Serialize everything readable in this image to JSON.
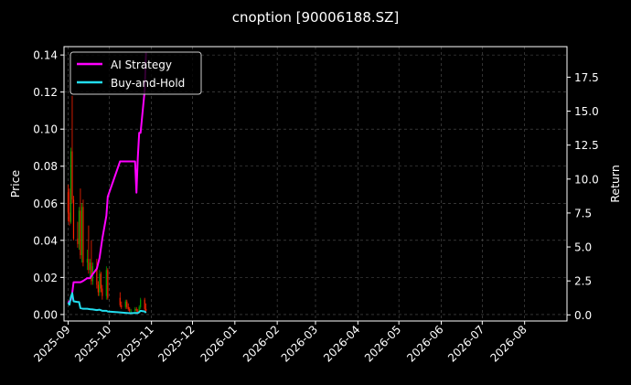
{
  "chart_data": {
    "type": "line",
    "title": "cnoption [90006188.SZ]",
    "ylabel_left": "Price",
    "ylabel_right": "Return",
    "ylim_left": [
      -0.0035,
      0.1445
    ],
    "ylim_right": [
      -0.45,
      19.75
    ],
    "yticks_left": [
      "0.00",
      "0.02",
      "0.04",
      "0.06",
      "0.08",
      "0.10",
      "0.12",
      "0.14"
    ],
    "yticks_right": [
      "0.0",
      "2.5",
      "5.0",
      "7.5",
      "10.0",
      "12.5",
      "15.0",
      "17.5"
    ],
    "xlim": [
      "2025-08-29",
      "2026-09-01"
    ],
    "xticks": [
      "2025-09",
      "2025-10",
      "2025-11",
      "2025-12",
      "2026-01",
      "2026-02",
      "2026-03",
      "2026-04",
      "2026-05",
      "2026-06",
      "2026-07",
      "2026-08"
    ],
    "grid": true,
    "legend_placement": "top-left",
    "colors": {
      "background": "#000000",
      "up": "#00a000",
      "down": "#ff2200",
      "ai": "#ff00ff",
      "bh": "#22ddee",
      "grid": "#555555"
    },
    "candles": [
      {
        "date": "2025-09-01",
        "open": 0.066,
        "high": 0.07,
        "low": 0.05,
        "close": 0.055
      },
      {
        "date": "2025-09-02",
        "open": 0.055,
        "high": 0.068,
        "low": 0.048,
        "close": 0.05
      },
      {
        "date": "2025-09-03",
        "open": 0.05,
        "high": 0.09,
        "low": 0.049,
        "close": 0.088
      },
      {
        "date": "2025-09-04",
        "open": 0.088,
        "high": 0.118,
        "low": 0.06,
        "close": 0.062
      },
      {
        "date": "2025-09-05",
        "open": 0.062,
        "high": 0.064,
        "low": 0.04,
        "close": 0.041
      },
      {
        "date": "2025-09-08",
        "open": 0.041,
        "high": 0.05,
        "low": 0.036,
        "close": 0.038
      },
      {
        "date": "2025-09-09",
        "open": 0.038,
        "high": 0.058,
        "low": 0.035,
        "close": 0.056
      },
      {
        "date": "2025-09-10",
        "open": 0.056,
        "high": 0.068,
        "low": 0.03,
        "close": 0.032
      },
      {
        "date": "2025-09-11",
        "open": 0.032,
        "high": 0.06,
        "low": 0.028,
        "close": 0.058
      },
      {
        "date": "2025-09-12",
        "open": 0.058,
        "high": 0.062,
        "low": 0.026,
        "close": 0.028
      },
      {
        "date": "2025-09-15",
        "open": 0.028,
        "high": 0.035,
        "low": 0.024,
        "close": 0.03
      },
      {
        "date": "2025-09-16",
        "open": 0.03,
        "high": 0.048,
        "low": 0.022,
        "close": 0.024
      },
      {
        "date": "2025-09-17",
        "open": 0.024,
        "high": 0.03,
        "low": 0.02,
        "close": 0.028
      },
      {
        "date": "2025-09-18",
        "open": 0.028,
        "high": 0.04,
        "low": 0.016,
        "close": 0.018
      },
      {
        "date": "2025-09-19",
        "open": 0.018,
        "high": 0.028,
        "low": 0.016,
        "close": 0.026
      },
      {
        "date": "2025-09-22",
        "open": 0.026,
        "high": 0.03,
        "low": 0.014,
        "close": 0.016
      },
      {
        "date": "2025-09-23",
        "open": 0.016,
        "high": 0.018,
        "low": 0.01,
        "close": 0.012
      },
      {
        "date": "2025-09-24",
        "open": 0.012,
        "high": 0.024,
        "low": 0.01,
        "close": 0.022
      },
      {
        "date": "2025-09-25",
        "open": 0.022,
        "high": 0.023,
        "low": 0.012,
        "close": 0.014
      },
      {
        "date": "2025-09-26",
        "open": 0.014,
        "high": 0.016,
        "low": 0.008,
        "close": 0.01
      },
      {
        "date": "2025-09-29",
        "open": 0.01,
        "high": 0.026,
        "low": 0.008,
        "close": 0.024
      },
      {
        "date": "2025-09-30",
        "open": 0.024,
        "high": 0.025,
        "low": 0.008,
        "close": 0.009
      },
      {
        "date": "2025-10-09",
        "open": 0.009,
        "high": 0.012,
        "low": 0.004,
        "close": 0.005
      },
      {
        "date": "2025-10-10",
        "open": 0.005,
        "high": 0.007,
        "low": 0.003,
        "close": 0.004
      },
      {
        "date": "2025-10-13",
        "open": 0.004,
        "high": 0.008,
        "low": 0.003,
        "close": 0.007
      },
      {
        "date": "2025-10-14",
        "open": 0.007,
        "high": 0.008,
        "low": 0.003,
        "close": 0.004
      },
      {
        "date": "2025-10-15",
        "open": 0.004,
        "high": 0.006,
        "low": 0.002,
        "close": 0.003
      },
      {
        "date": "2025-10-16",
        "open": 0.003,
        "high": 0.004,
        "low": 0.001,
        "close": 0.002
      },
      {
        "date": "2025-10-17",
        "open": 0.002,
        "high": 0.003,
        "low": 0.001,
        "close": 0.002
      },
      {
        "date": "2025-10-20",
        "open": 0.002,
        "high": 0.004,
        "low": 0.001,
        "close": 0.003
      },
      {
        "date": "2025-10-21",
        "open": 0.003,
        "high": 0.004,
        "low": 0.001,
        "close": 0.002
      },
      {
        "date": "2025-10-22",
        "open": 0.002,
        "high": 0.003,
        "low": 0.001,
        "close": 0.0015
      },
      {
        "date": "2025-10-23",
        "open": 0.0015,
        "high": 0.005,
        "low": 0.001,
        "close": 0.004
      },
      {
        "date": "2025-10-24",
        "open": 0.004,
        "high": 0.009,
        "low": 0.003,
        "close": 0.008
      },
      {
        "date": "2025-10-27",
        "open": 0.008,
        "high": 0.009,
        "low": 0.002,
        "close": 0.003
      },
      {
        "date": "2025-10-28",
        "open": 0.003,
        "high": 0.006,
        "low": 0.001,
        "close": 0.002
      }
    ],
    "series": [
      {
        "name": "AI Strategy",
        "dates": [
          "2025-09-01",
          "2025-09-03",
          "2025-09-04",
          "2025-09-05",
          "2025-09-08",
          "2025-09-10",
          "2025-09-12",
          "2025-09-15",
          "2025-09-17",
          "2025-09-19",
          "2025-09-22",
          "2025-09-24",
          "2025-09-26",
          "2025-09-29",
          "2025-09-30",
          "2025-10-09",
          "2025-10-10",
          "2025-10-13",
          "2025-10-14",
          "2025-10-15",
          "2025-10-16",
          "2025-10-17",
          "2025-10-20",
          "2025-10-21",
          "2025-10-22",
          "2025-10-23",
          "2025-10-24",
          "2025-10-27",
          "2025-10-28"
        ],
        "values": [
          0.9,
          1.1,
          1.6,
          2.4,
          2.4,
          2.4,
          2.5,
          2.7,
          2.7,
          3.0,
          3.4,
          4.2,
          5.6,
          7.3,
          8.7,
          11.3,
          11.3,
          11.3,
          11.3,
          11.3,
          11.3,
          11.3,
          11.3,
          9.0,
          11.6,
          13.4,
          13.4,
          16.5,
          19.3
        ]
      },
      {
        "name": "Buy-and-Hold",
        "dates": [
          "2025-09-01",
          "2025-09-02",
          "2025-09-03",
          "2025-09-04",
          "2025-09-05",
          "2025-09-08",
          "2025-09-09",
          "2025-09-10",
          "2025-09-12",
          "2025-09-15",
          "2025-09-17",
          "2025-09-19",
          "2025-09-22",
          "2025-09-24",
          "2025-09-26",
          "2025-09-29",
          "2025-09-30",
          "2025-10-09",
          "2025-10-13",
          "2025-10-16",
          "2025-10-20",
          "2025-10-22",
          "2025-10-23",
          "2025-10-24",
          "2025-10-27",
          "2025-10-28"
        ],
        "values": [
          0.9,
          0.75,
          1.3,
          1.6,
          1.0,
          0.95,
          0.95,
          0.5,
          0.45,
          0.45,
          0.42,
          0.4,
          0.35,
          0.38,
          0.3,
          0.3,
          0.25,
          0.18,
          0.15,
          0.12,
          0.14,
          0.14,
          0.2,
          0.3,
          0.25,
          0.15
        ]
      }
    ]
  }
}
